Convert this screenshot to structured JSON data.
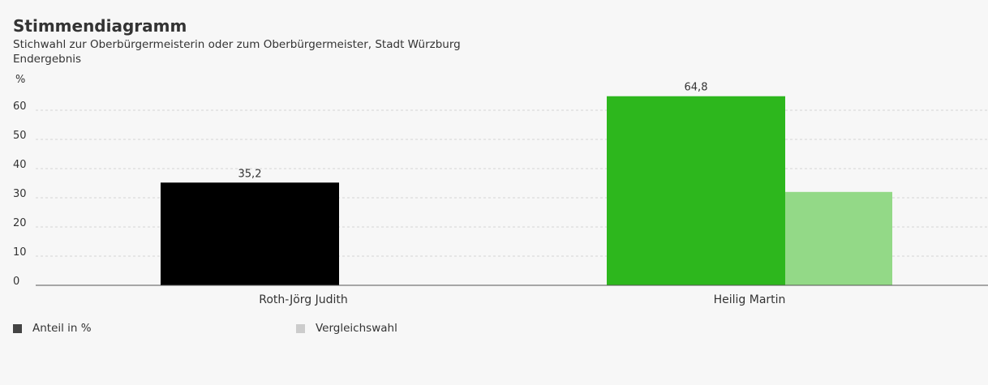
{
  "header": {
    "title": "Stimmendiagramm",
    "subtitle": "Stichwahl zur Oberbürgermeisterin oder zum Oberbürgermeister, Stadt Würzburg",
    "status": "Endergebnis"
  },
  "chart_data": {
    "type": "bar",
    "ylabel": "%",
    "ylim": [
      0,
      65
    ],
    "yticks": [
      0,
      10,
      20,
      30,
      40,
      50,
      60
    ],
    "grid": true,
    "categories": [
      "Roth-Jörg Judith",
      "Heilig Martin"
    ],
    "series": [
      {
        "name": "Anteil in %",
        "values": [
          35.2,
          64.8
        ],
        "labels": [
          "35,2",
          "64,8"
        ],
        "colors": [
          "#000000",
          "#2db71d"
        ]
      },
      {
        "name": "Vergleichswahl",
        "values": [
          null,
          32.0
        ],
        "colors": [
          null,
          "#93d987"
        ]
      }
    ],
    "legend_position": "bottom-left"
  },
  "legend": {
    "items": [
      {
        "label": "Anteil in %",
        "color": "#444444"
      },
      {
        "label": "Vergleichswahl",
        "color": "#cccccc"
      }
    ]
  }
}
